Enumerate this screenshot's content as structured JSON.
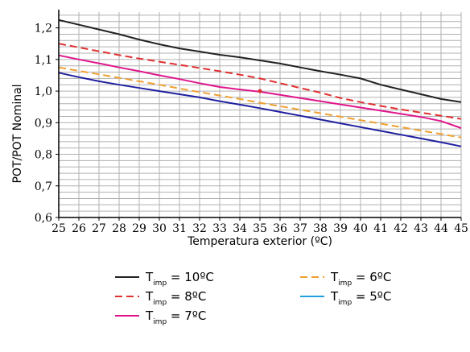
{
  "chart_data": {
    "type": "line",
    "title": "",
    "xlabel": "Temperatura exterior (ºC)",
    "ylabel": "POT/POT Nominal",
    "xlim": [
      25,
      45
    ],
    "ylim": [
      0.6,
      1.25
    ],
    "grid": true,
    "legend_position": "bottom",
    "x_ticks": [
      "25",
      "26",
      "27",
      "28",
      "29",
      "30",
      "31",
      "32",
      "33",
      "34",
      "35",
      "36",
      "37",
      "38",
      "39",
      "40",
      "41",
      "42",
      "43",
      "44",
      "45"
    ],
    "y_ticks": [
      "0,6",
      "0,7",
      "0,8",
      "0,9",
      "1,0",
      "1,1",
      "1,2"
    ],
    "x": [
      25,
      26,
      27,
      28,
      29,
      30,
      31,
      32,
      33,
      34,
      35,
      36,
      37,
      38,
      39,
      40,
      41,
      42,
      43,
      44,
      45
    ],
    "series": [
      {
        "name": "T_imp = 10ºC",
        "label": "T",
        "subscript": "imp",
        "suffix": " = 10ºC",
        "color": "#222222",
        "dash": "solid",
        "values": [
          1.225,
          1.21,
          1.195,
          1.18,
          1.163,
          1.148,
          1.135,
          1.125,
          1.115,
          1.107,
          1.097,
          1.087,
          1.075,
          1.063,
          1.052,
          1.04,
          1.02,
          1.005,
          0.99,
          0.975,
          0.965
        ]
      },
      {
        "name": "T_imp = 8ºC",
        "label": "T",
        "subscript": "imp",
        "suffix": " = 8ºC",
        "color": "#e03030",
        "dash": "dashed",
        "values": [
          1.15,
          1.138,
          1.126,
          1.114,
          1.103,
          1.093,
          1.083,
          1.073,
          1.063,
          1.052,
          1.04,
          1.025,
          1.01,
          0.995,
          0.978,
          0.965,
          0.953,
          0.942,
          0.932,
          0.922,
          0.912
        ]
      },
      {
        "name": "T_imp = 7ºC",
        "label": "T",
        "subscript": "imp",
        "suffix": " = 7ºC",
        "color": "#e0168c",
        "dash": "solid",
        "values": [
          1.113,
          1.1,
          1.088,
          1.075,
          1.063,
          1.05,
          1.038,
          1.025,
          1.013,
          1.005,
          0.998,
          0.988,
          0.978,
          0.968,
          0.958,
          0.948,
          0.938,
          0.928,
          0.918,
          0.905,
          0.883
        ]
      },
      {
        "name": "T_imp = 6ºC",
        "label": "T",
        "subscript": "imp",
        "suffix": " = 6ºC",
        "color": "#f0a030",
        "dash": "dashed",
        "values": [
          1.075,
          1.064,
          1.053,
          1.042,
          1.031,
          1.02,
          1.008,
          0.997,
          0.986,
          0.975,
          0.963,
          0.952,
          0.941,
          0.93,
          0.919,
          0.908,
          0.897,
          0.886,
          0.875,
          0.864,
          0.853
        ]
      },
      {
        "name": "T_imp = 5ºC",
        "label": "T",
        "subscript": "imp",
        "suffix": " = 5ºC",
        "color": "#2020a0",
        "legend_color": "#20a0e0",
        "dash": "solid",
        "values": [
          1.058,
          1.044,
          1.031,
          1.02,
          1.01,
          1.0,
          0.99,
          0.98,
          0.968,
          0.957,
          0.946,
          0.934,
          0.922,
          0.91,
          0.898,
          0.886,
          0.874,
          0.862,
          0.85,
          0.838,
          0.825
        ]
      }
    ],
    "marker": {
      "x": 35,
      "y": 1.0,
      "color": "#e03030"
    }
  }
}
